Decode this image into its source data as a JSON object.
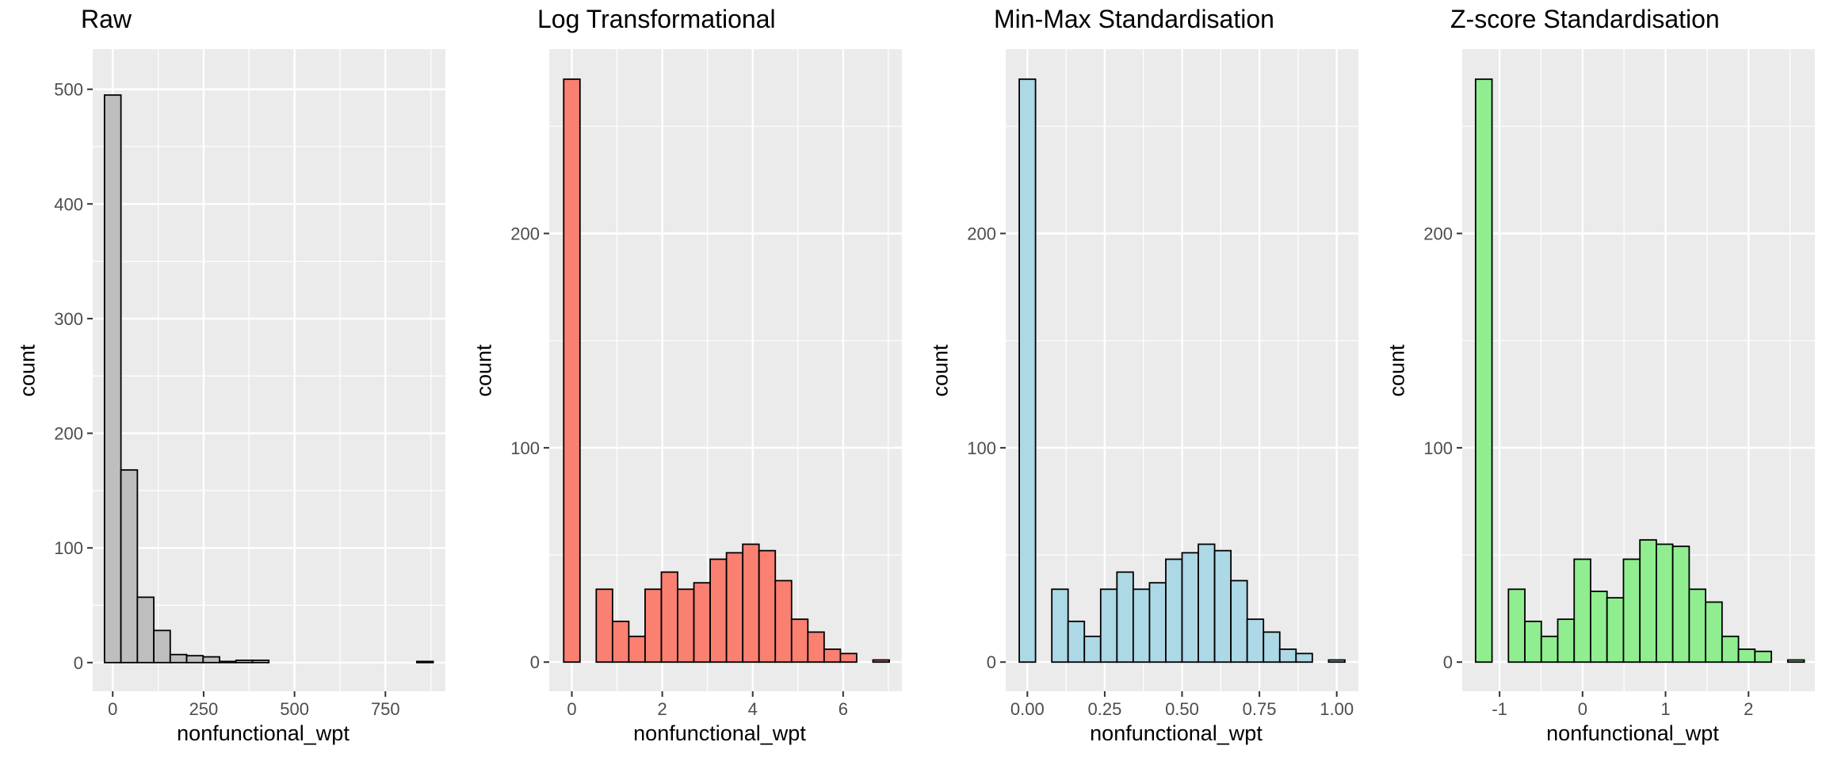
{
  "chart_data": [
    {
      "type": "bar",
      "title": "Raw",
      "xlabel": "nonfunctional_wpt",
      "ylabel": "count",
      "fill": "#bebebe",
      "xlim": [
        -55,
        915
      ],
      "ylim": [
        -25,
        535
      ],
      "xticks": [
        0,
        250,
        500,
        750
      ],
      "xtick_labels": [
        "0",
        "250",
        "500",
        "750"
      ],
      "yticks": [
        0,
        100,
        200,
        300,
        400,
        500
      ],
      "ytick_labels": [
        "0",
        "100",
        "200",
        "300",
        "400",
        "500"
      ],
      "bin_width": 45.2,
      "bin_centers": [
        0,
        45.2,
        90.4,
        135.6,
        180.8,
        226,
        271.2,
        316.4,
        361.6,
        406.8,
        452,
        497.2,
        542.4,
        587.6,
        632.8,
        678,
        723.2,
        768.4,
        813.6,
        858.8
      ],
      "values": [
        495,
        168,
        57,
        28,
        7,
        6,
        5,
        1,
        2,
        2,
        0,
        0,
        0,
        0,
        0,
        0,
        0,
        0,
        0,
        1
      ]
    },
    {
      "type": "bar",
      "title": "Log Transformational",
      "xlabel": "nonfunctional_wpt",
      "ylabel": "count",
      "fill": "#fa8072",
      "xlim": [
        -0.5,
        7.3
      ],
      "ylim": [
        -13.6,
        286
      ],
      "xticks": [
        0,
        2,
        4,
        6
      ],
      "xtick_labels": [
        "0",
        "2",
        "4",
        "6"
      ],
      "yticks": [
        0,
        100,
        200
      ],
      "ytick_labels": [
        "0",
        "100",
        "200"
      ],
      "bin_width": 0.36,
      "bin_centers": [
        0,
        0.36,
        0.72,
        1.08,
        1.44,
        1.8,
        2.16,
        2.52,
        2.88,
        3.24,
        3.6,
        3.96,
        4.32,
        4.68,
        5.04,
        5.4,
        5.76,
        6.12,
        6.48,
        6.84
      ],
      "values": [
        272,
        0,
        34,
        19,
        12,
        34,
        42,
        34,
        37,
        48,
        51,
        55,
        52,
        38,
        20,
        14,
        6,
        4,
        0,
        1
      ]
    },
    {
      "type": "bar",
      "title": "Min-Max Standardisation",
      "xlabel": "nonfunctional_wpt",
      "ylabel": "count",
      "fill": "#add8e6",
      "xlim": [
        -0.07,
        1.07
      ],
      "ylim": [
        -13.6,
        286
      ],
      "xticks": [
        0,
        0.25,
        0.5,
        0.75,
        1.0
      ],
      "xtick_labels": [
        "0.00",
        "0.25",
        "0.50",
        "0.75",
        "1.00"
      ],
      "yticks": [
        0,
        100,
        200
      ],
      "ytick_labels": [
        "0",
        "100",
        "200"
      ],
      "bin_width": 0.0526,
      "bin_centers": [
        0,
        0.0526,
        0.1053,
        0.1579,
        0.2105,
        0.2632,
        0.3158,
        0.3684,
        0.4211,
        0.4737,
        0.5263,
        0.5789,
        0.6316,
        0.6842,
        0.7368,
        0.7895,
        0.8421,
        0.8947,
        0.9474,
        1.0
      ],
      "values": [
        272,
        0,
        34,
        19,
        12,
        34,
        42,
        34,
        37,
        48,
        51,
        55,
        52,
        38,
        20,
        14,
        6,
        4,
        0,
        1
      ]
    },
    {
      "type": "bar",
      "title": "Z-score Standardisation",
      "xlabel": "nonfunctional_wpt",
      "ylabel": "count",
      "fill": "#90ee90",
      "xlim": [
        -1.45,
        2.8
      ],
      "ylim": [
        -13.6,
        286
      ],
      "xticks": [
        -1,
        0,
        1,
        2
      ],
      "xtick_labels": [
        "-1",
        "0",
        "1",
        "2"
      ],
      "yticks": [
        0,
        100,
        200
      ],
      "ytick_labels": [
        "0",
        "100",
        "200"
      ],
      "bin_width": 0.198,
      "bin_centers": [
        -1.19,
        -0.992,
        -0.794,
        -0.596,
        -0.398,
        -0.2,
        -0.002,
        0.196,
        0.394,
        0.592,
        0.79,
        0.988,
        1.186,
        1.384,
        1.582,
        1.78,
        1.978,
        2.176,
        2.374,
        2.572
      ],
      "values": [
        272,
        0,
        34,
        19,
        12,
        20,
        48,
        33,
        30,
        48,
        57,
        55,
        54,
        34,
        28,
        12,
        6,
        5,
        0,
        1
      ]
    }
  ]
}
